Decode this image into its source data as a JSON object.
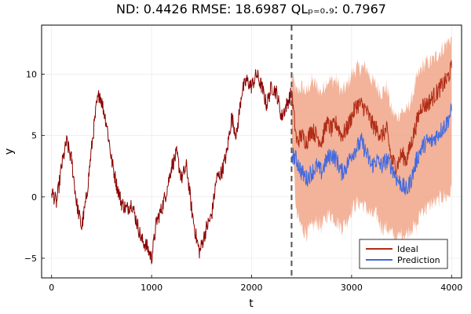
{
  "chart_data": {
    "type": "line",
    "title": "ND: 0.4426    RMSE: 18.6987    QLₚ₌₀.₉: 0.7967",
    "xlabel": "t",
    "ylabel": "y",
    "xlim": [
      -100,
      4100
    ],
    "ylim": [
      -6.6,
      14.0
    ],
    "xticks": [
      0,
      1000,
      2000,
      3000,
      4000
    ],
    "yticks": [
      -5,
      0,
      5,
      10
    ],
    "grid": true,
    "legend_position": "bottom-right",
    "forecast_start": 2400,
    "history": {
      "color": "#8b0000",
      "x": [
        0,
        50,
        100,
        150,
        200,
        250,
        300,
        350,
        400,
        450,
        480,
        550,
        600,
        650,
        700,
        750,
        800,
        850,
        900,
        950,
        1000,
        1050,
        1100,
        1150,
        1200,
        1250,
        1300,
        1350,
        1400,
        1450,
        1480,
        1550,
        1600,
        1650,
        1700,
        1750,
        1800,
        1850,
        1900,
        1950,
        2000,
        2050,
        2100,
        2150,
        2200,
        2250,
        2300,
        2350,
        2400
      ],
      "y": [
        0.5,
        -0.5,
        2.5,
        4.5,
        3.0,
        -0.5,
        -2.5,
        0.0,
        4.0,
        7.5,
        8.5,
        6.0,
        3.0,
        1.0,
        -0.5,
        -1.0,
        -0.5,
        -2.0,
        -3.5,
        -4.0,
        -5.0,
        -2.0,
        -1.0,
        0.5,
        2.5,
        3.5,
        1.5,
        2.5,
        -1.0,
        -3.5,
        -4.5,
        -2.5,
        -1.5,
        1.5,
        2.0,
        3.5,
        6.5,
        5.0,
        8.5,
        9.5,
        9.0,
        10.0,
        9.0,
        7.5,
        9.0,
        8.5,
        6.5,
        7.5,
        8.5
      ]
    },
    "series": [
      {
        "name": "Ideal",
        "color": "#b22d17",
        "x": [
          2400,
          2450,
          2500,
          2550,
          2600,
          2650,
          2700,
          2750,
          2800,
          2850,
          2900,
          2950,
          3000,
          3050,
          3100,
          3150,
          3200,
          3250,
          3300,
          3350,
          3400,
          3450,
          3500,
          3550,
          3600,
          3650,
          3700,
          3750,
          3800,
          3850,
          3900,
          3950,
          4000
        ],
        "y": [
          8.5,
          4.5,
          5.0,
          4.5,
          5.5,
          5.0,
          4.5,
          6.0,
          5.5,
          6.0,
          5.0,
          5.5,
          6.5,
          7.5,
          7.5,
          7.0,
          6.0,
          5.5,
          5.0,
          5.5,
          3.0,
          2.5,
          3.5,
          3.0,
          4.5,
          6.0,
          7.5,
          7.5,
          8.0,
          8.5,
          9.0,
          9.5,
          10.5
        ]
      },
      {
        "name": "Prediction",
        "color": "#4169e1",
        "x": [
          2400,
          2450,
          2500,
          2550,
          2600,
          2650,
          2700,
          2750,
          2800,
          2850,
          2900,
          2950,
          3000,
          3050,
          3100,
          3150,
          3200,
          3250,
          3300,
          3350,
          3400,
          3450,
          3500,
          3550,
          3600,
          3650,
          3700,
          3750,
          3800,
          3850,
          3900,
          3950,
          4000
        ],
        "y": [
          3.5,
          3.0,
          2.0,
          1.5,
          2.0,
          2.5,
          2.0,
          3.0,
          3.5,
          3.0,
          2.0,
          2.5,
          3.5,
          4.0,
          4.5,
          3.5,
          2.5,
          3.0,
          2.5,
          3.0,
          2.5,
          1.5,
          1.0,
          0.5,
          1.5,
          3.0,
          4.0,
          4.5,
          4.5,
          5.0,
          5.5,
          6.0,
          7.0
        ]
      }
    ],
    "interval": {
      "color": "#f0a688",
      "x": [
        2400,
        2450,
        2500,
        2550,
        2600,
        2650,
        2700,
        2750,
        2800,
        2850,
        2900,
        2950,
        3000,
        3050,
        3100,
        3150,
        3200,
        3250,
        3300,
        3350,
        3400,
        3450,
        3500,
        3550,
        3600,
        3650,
        3700,
        3750,
        3800,
        3850,
        3900,
        3950,
        4000
      ],
      "lower": [
        5.0,
        -1.5,
        -2.5,
        -3.0,
        -2.5,
        -2.0,
        -2.5,
        -1.5,
        -1.5,
        -2.0,
        -2.5,
        -2.0,
        -1.0,
        -0.5,
        -0.5,
        -1.0,
        -1.5,
        -1.5,
        -2.5,
        -2.5,
        -3.0,
        -3.5,
        -3.0,
        -3.0,
        -2.5,
        -2.5,
        -1.0,
        -1.0,
        -0.5,
        -0.5,
        0.0,
        0.0,
        0.5
      ],
      "upper": [
        10.0,
        8.5,
        9.0,
        8.5,
        9.5,
        9.0,
        8.5,
        9.5,
        9.5,
        9.5,
        8.5,
        9.0,
        10.0,
        10.5,
        10.5,
        10.5,
        9.5,
        9.0,
        8.5,
        9.0,
        7.0,
        6.5,
        7.0,
        7.0,
        8.0,
        9.5,
        10.5,
        11.0,
        11.0,
        11.5,
        12.0,
        12.5,
        13.0
      ]
    }
  }
}
